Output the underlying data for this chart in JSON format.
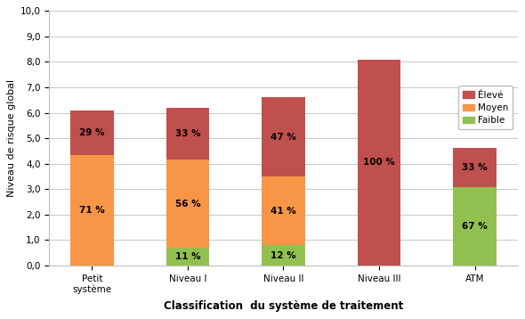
{
  "categories": [
    "Petit\nsystème",
    "Niveau I",
    "Niveau II",
    "Niveau III",
    "ATM"
  ],
  "faible": [
    0.0,
    0.68,
    0.79,
    0.0,
    3.08
  ],
  "moyen": [
    4.33,
    3.47,
    2.71,
    0.0,
    0.0
  ],
  "eleve": [
    1.77,
    2.05,
    3.1,
    8.1,
    1.52
  ],
  "faible_pct": [
    "",
    "11 %",
    "12 %",
    "",
    "67 %"
  ],
  "moyen_pct": [
    "71 %",
    "56 %",
    "41 %",
    "",
    ""
  ],
  "eleve_pct": [
    "29 %",
    "33 %",
    "47 %",
    "100 %",
    "33 %"
  ],
  "color_faible": "#92C050",
  "color_moyen": "#F79646",
  "color_eleve": "#C0504D",
  "ylabel": "Niveau de risque global",
  "xlabel": "Classification  du système de traitement",
  "ylim": [
    0,
    10
  ],
  "yticks": [
    0.0,
    1.0,
    2.0,
    3.0,
    4.0,
    5.0,
    6.0,
    7.0,
    8.0,
    9.0,
    10.0
  ],
  "ytick_labels": [
    "0,0",
    "1,0",
    "2,0",
    "3,0",
    "4,0",
    "5,0",
    "6,0",
    "7,0",
    "8,0",
    "9,0",
    "10,0"
  ],
  "bar_width": 0.45,
  "figwidth": 5.9,
  "figheight": 3.58,
  "dpi": 100
}
